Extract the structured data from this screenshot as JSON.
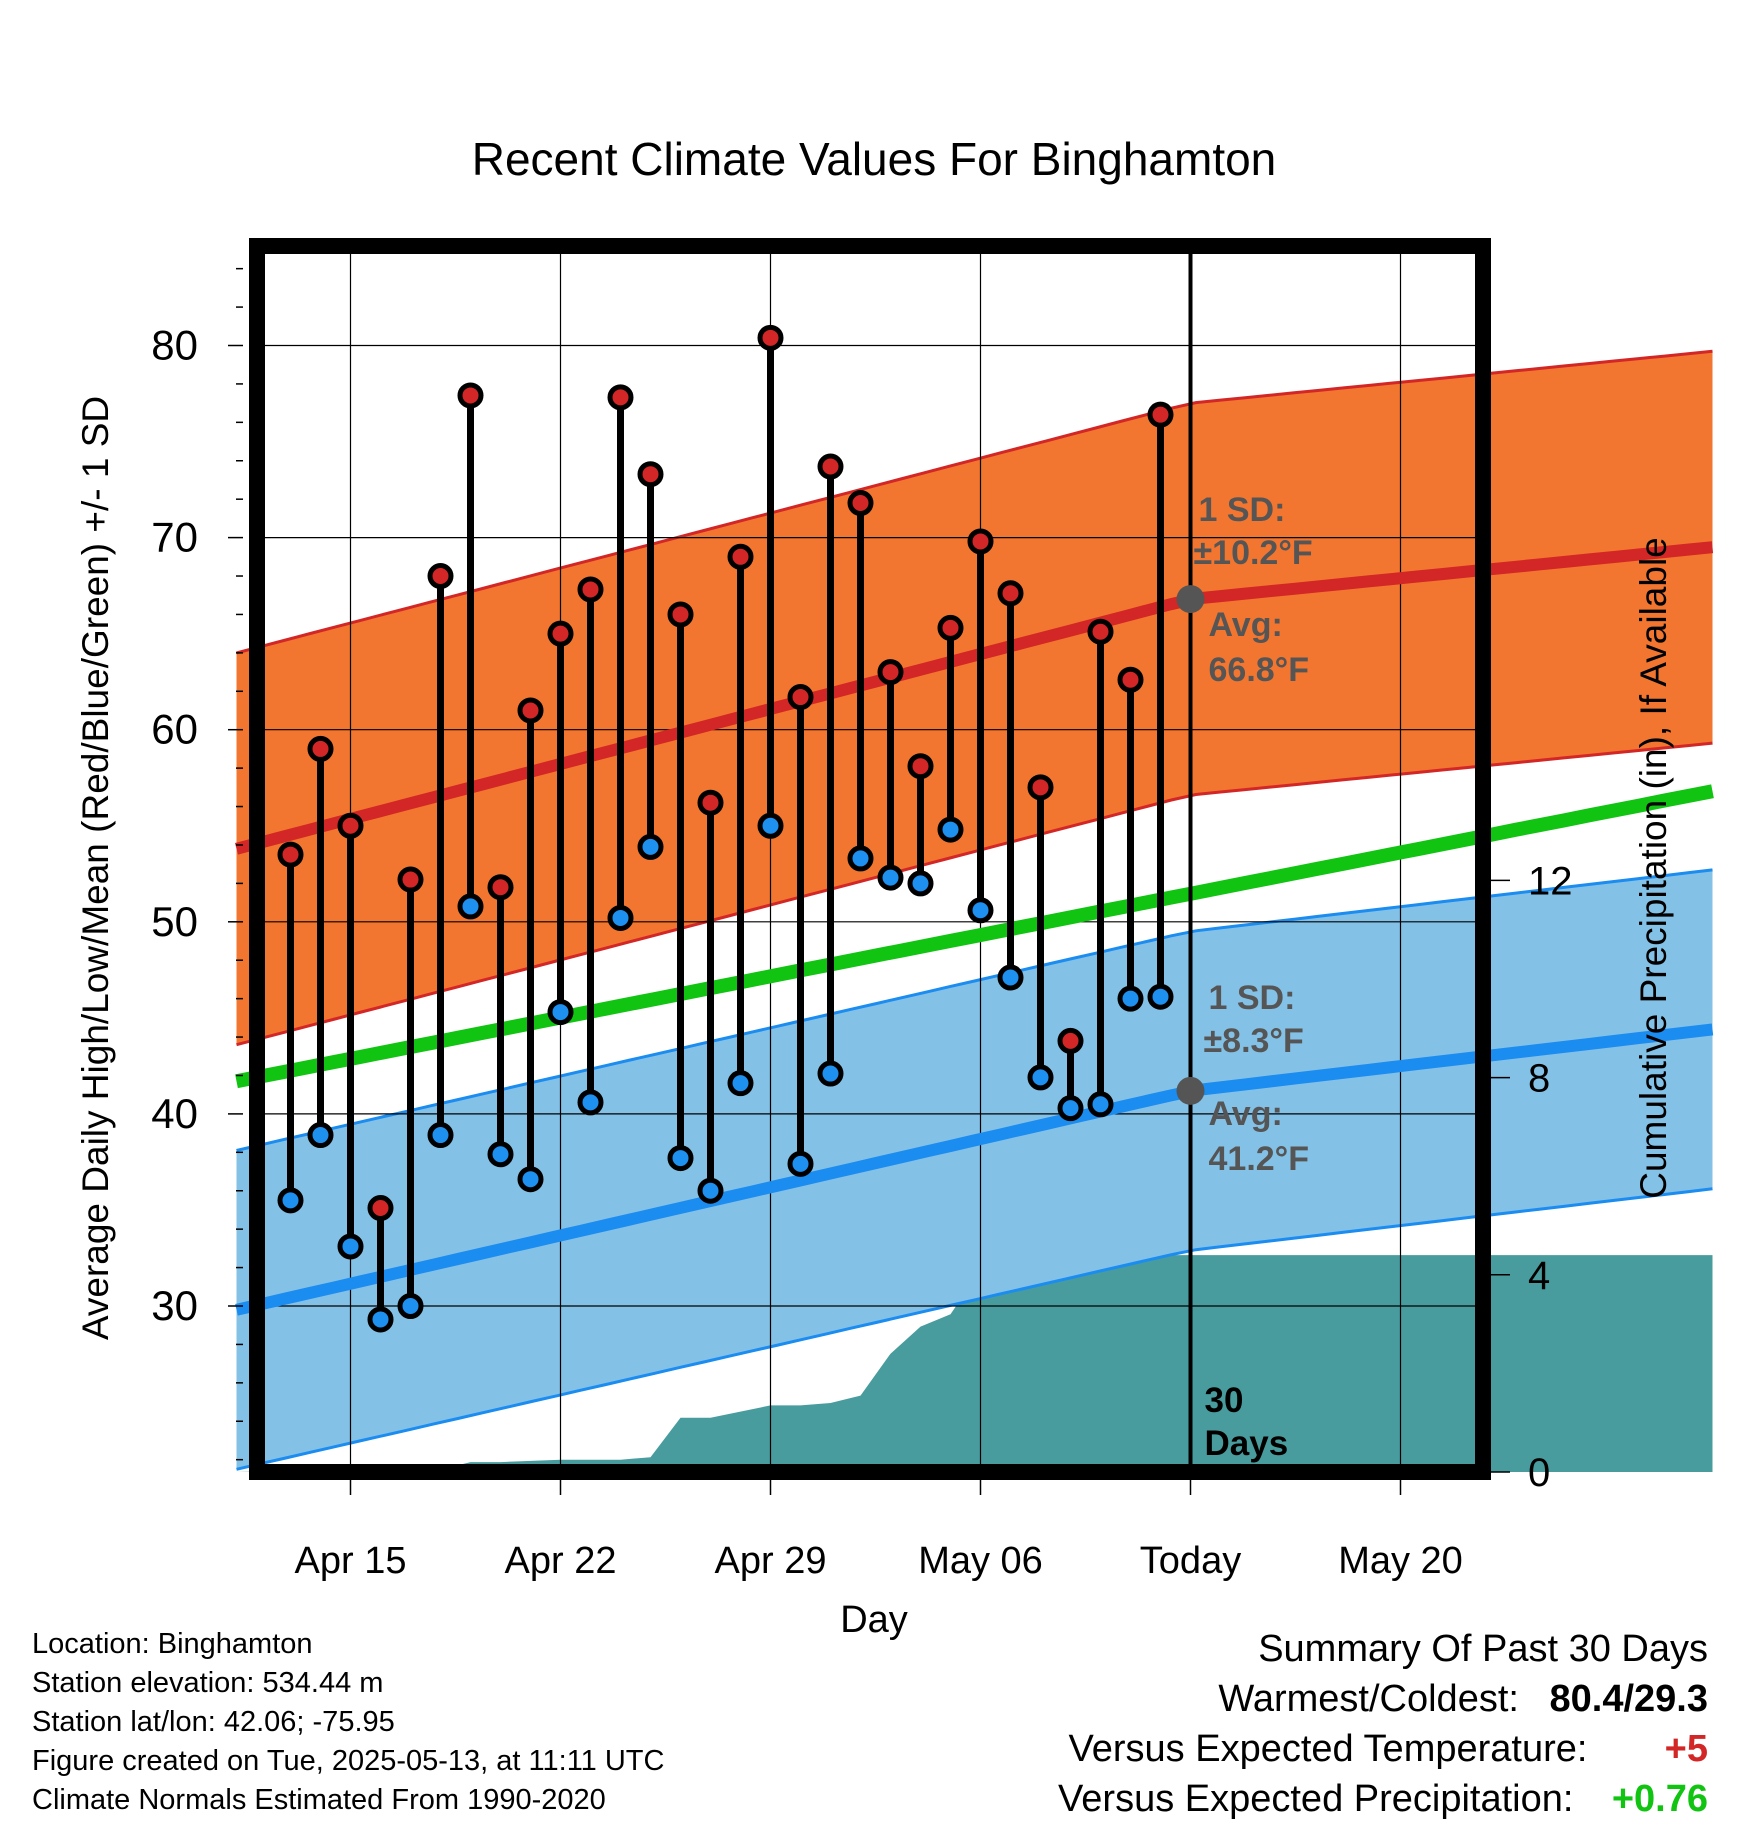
{
  "chart_data": {
    "type": "line",
    "title": "Recent Climate Values For Binghamton",
    "xlabel": "Day",
    "ylabel": "Average Daily High/Low/Mean (Red/Blue/Green) +/- 1 SD",
    "y2label": "Cumulative Precipitation (in), If Available",
    "ylim": [
      21,
      85
    ],
    "y2lim": [
      0,
      18
    ],
    "xlim": [
      -7.2,
      51.3
    ],
    "x_ticks": [
      {
        "x": 0,
        "label": "Apr 15"
      },
      {
        "x": 7,
        "label": "Apr 22"
      },
      {
        "x": 14,
        "label": "Apr 29"
      },
      {
        "x": 21,
        "label": "May 06"
      },
      {
        "x": 28,
        "label": "Today"
      },
      {
        "x": 35,
        "label": "May 20"
      }
    ],
    "y_ticks": [
      30,
      40,
      50,
      60,
      70,
      80
    ],
    "y2_ticks": [
      0,
      4,
      8,
      12
    ],
    "today_x": 28,
    "days": [
      -2,
      -1,
      0,
      1,
      2,
      3,
      4,
      5,
      6,
      7,
      8,
      9,
      10,
      11,
      12,
      13,
      14,
      15,
      16,
      17,
      18,
      19,
      20,
      21,
      22,
      23,
      24,
      25,
      26,
      27
    ],
    "highs": [
      53.5,
      59,
      55,
      35.1,
      52.2,
      68,
      77.4,
      51.8,
      61,
      65,
      67.3,
      77.3,
      73.3,
      66,
      56.2,
      69,
      80.4,
      61.7,
      73.7,
      71.8,
      63,
      58.1,
      65.3,
      69.8,
      67.1,
      57,
      43.8,
      65.1,
      62.6,
      76.4
    ],
    "lows": [
      35.5,
      38.9,
      33.1,
      29.3,
      30,
      38.9,
      50.8,
      37.9,
      36.6,
      45.3,
      40.6,
      50.2,
      53.9,
      37.7,
      36,
      41.6,
      55,
      37.4,
      42.1,
      53.3,
      52.3,
      52,
      54.8,
      50.6,
      47.1,
      41.9,
      40.3,
      40.5,
      46,
      46.1
    ],
    "normal_high": {
      "x": [
        -3.8,
        28,
        45.4
      ],
      "avg": [
        53.8,
        66.8,
        69.5
      ],
      "sd": 10.2
    },
    "normal_low": {
      "x": [
        -3.8,
        28,
        45.4
      ],
      "avg": [
        29.8,
        41.2,
        44.4
      ],
      "sd": 8.3
    },
    "normal_mean": {
      "x": [
        -3.8,
        45.4
      ],
      "y": [
        41.7,
        56.8
      ]
    },
    "precip": {
      "x": [
        -3.8,
        1,
        3,
        4,
        5,
        7,
        8,
        9,
        10,
        11,
        12,
        14,
        15,
        16,
        17,
        18,
        19,
        20,
        21,
        22,
        23,
        24,
        45.4
      ],
      "y": [
        0,
        0.05,
        0.05,
        0.2,
        0.2,
        0.25,
        0.25,
        0.25,
        0.3,
        1.1,
        1.1,
        1.35,
        1.35,
        1.4,
        1.55,
        2.4,
        2.95,
        3.2,
        4.1,
        4.1,
        4.4,
        4.4,
        4.4
      ]
    },
    "colors": {
      "high_band": "#f2762f",
      "high_line": "#d32626",
      "low_band": "#84c1e6",
      "low_line": "#1b8cf0",
      "mean_line": "#11c411",
      "precip": "#489c9e",
      "high_marker": "#d32626",
      "low_marker": "#1e90f0",
      "avg_marker": "#555555",
      "annotation": "#555555"
    },
    "annotations": {
      "high_sd": "1 SD:",
      "high_sd_val": "±10.2°F",
      "high_avg": "Avg:",
      "high_avg_val": "66.8°F",
      "low_sd": "1 SD:",
      "low_sd_val": "±8.3°F",
      "low_avg": "Avg:",
      "low_avg_val": "41.2°F",
      "days_1": "30",
      "days_2": "Days"
    }
  },
  "footer": {
    "location": "Location: Binghamton",
    "elevation": "Station elevation: 534.44 m",
    "latlon": "Station lat/lon: 42.06; -75.95",
    "created": "Figure created on Tue, 2025-05-13, at 11:11 UTC",
    "normals": "Climate Normals Estimated From 1990-2020"
  },
  "summary": {
    "heading": "Summary Of Past 30 Days",
    "warm_cold_label": "Warmest/Coldest:",
    "warm_cold_value": "80.4/29.3",
    "temp_label": "Versus Expected Temperature:",
    "temp_value": "+5",
    "temp_color": "#d32626",
    "precip_label": "Versus Expected Precipitation:",
    "precip_value": "+0.76",
    "precip_color": "#11c411"
  }
}
